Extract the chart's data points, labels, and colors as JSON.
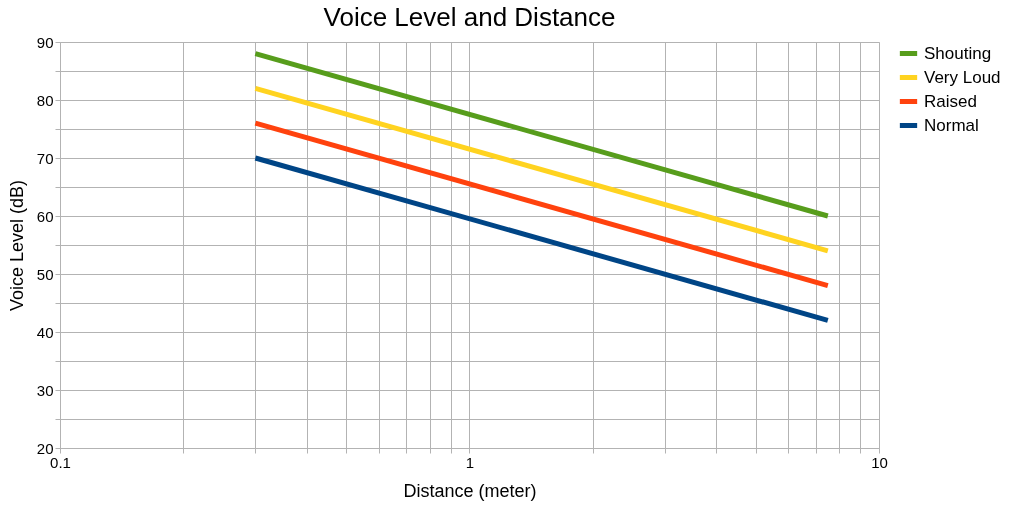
{
  "chart_data": {
    "type": "line",
    "title": "Voice Level and Distance",
    "xlabel": "Distance (meter)",
    "ylabel": "Voice Level (dB)",
    "x": [
      0.3,
      7.5
    ],
    "series": [
      {
        "name": "Shouting",
        "color": "#579d1c",
        "values": [
          88,
          60
        ]
      },
      {
        "name": "Very Loud",
        "color": "#ffd320",
        "values": [
          82,
          54
        ]
      },
      {
        "name": "Raised",
        "color": "#ff420e",
        "values": [
          76,
          48
        ]
      },
      {
        "name": "Normal",
        "color": "#004586",
        "values": [
          70,
          42
        ]
      }
    ],
    "log": "x",
    "xlim": [
      0.1,
      10
    ],
    "xticks": [
      "0.1",
      {
        "value": 0.2,
        "label": null
      },
      {
        "value": 0.3,
        "label": null
      },
      {
        "value": 0.4,
        "label": null
      },
      {
        "value": 0.5,
        "label": null
      },
      {
        "value": 0.6,
        "label": null
      },
      {
        "value": 0.7,
        "label": null
      },
      {
        "value": 0.8,
        "label": null
      },
      {
        "value": 0.9,
        "label": null
      },
      1,
      {
        "value": 2,
        "label": null
      },
      {
        "value": 3,
        "label": null
      },
      {
        "value": 4,
        "label": null
      },
      {
        "value": 5,
        "label": null
      },
      {
        "value": 6,
        "label": null
      },
      {
        "value": 7,
        "label": null
      },
      {
        "value": 8,
        "label": null
      },
      {
        "value": 9,
        "label": null
      },
      10
    ],
    "ylim": [
      20,
      90
    ],
    "yticks": [
      20,
      {
        "value": 25,
        "label": null
      },
      30,
      {
        "value": 35,
        "label": null
      },
      40,
      {
        "value": 45,
        "label": null
      },
      50,
      {
        "value": 55,
        "label": null
      },
      60,
      {
        "value": 65,
        "label": null
      },
      70,
      {
        "value": 75,
        "label": null
      },
      80,
      {
        "value": 85,
        "label": null
      },
      90
    ],
    "grid": true,
    "legend": "right",
    "marker": "none",
    "line_style": "solid"
  }
}
